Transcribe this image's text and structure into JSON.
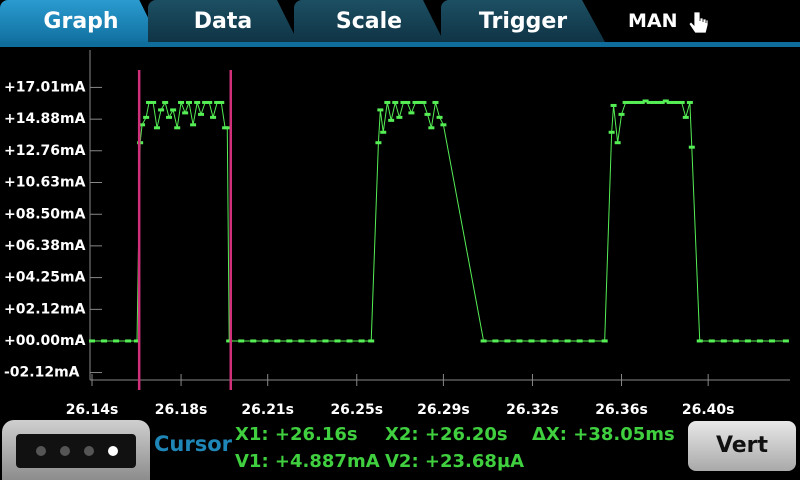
{
  "tabs": [
    "Graph",
    "Data",
    "Scale",
    "Trigger"
  ],
  "mode": "MAN",
  "cursor_panel": {
    "title": "Cursor",
    "x1": "X1: +26.16s",
    "x2": "X2: +26.20s",
    "dx": "ΔX: +38.05ms",
    "v1": "V1: +4.887mA",
    "v2": "V2: +23.68µA",
    "button": "Vert"
  },
  "chart_data": {
    "type": "line",
    "xlim": [
      26.14,
      26.43
    ],
    "ylim": [
      -2.62,
      19.52
    ],
    "xticks": [
      {
        "value": 26.14,
        "label": "26.14s"
      },
      {
        "value": 26.177,
        "label": "26.18s"
      },
      {
        "value": 26.213,
        "label": "26.21s"
      },
      {
        "value": 26.25,
        "label": "26.25s"
      },
      {
        "value": 26.286,
        "label": "26.29s"
      },
      {
        "value": 26.323,
        "label": "26.32s"
      },
      {
        "value": 26.36,
        "label": "26.36s"
      },
      {
        "value": 26.396,
        "label": "26.40s"
      }
    ],
    "yticks": [
      {
        "value": 17.01,
        "label": "+17.01mA"
      },
      {
        "value": 14.88,
        "label": "+14.88mA"
      },
      {
        "value": 12.76,
        "label": "+12.76mA"
      },
      {
        "value": 10.63,
        "label": "+10.63mA"
      },
      {
        "value": 8.5,
        "label": "+08.50mA"
      },
      {
        "value": 6.38,
        "label": "+06.38mA"
      },
      {
        "value": 4.25,
        "label": "+04.25mA"
      },
      {
        "value": 2.12,
        "label": "+02.12mA"
      },
      {
        "value": 0,
        "label": "+00.00mA"
      },
      {
        "value": -2.12,
        "label": "-02.12mA"
      }
    ],
    "cursor_x": [
      26.1596,
      26.19765
    ],
    "cursor_color": "#d0307a",
    "grid": false,
    "series": [
      {
        "color": "#55ee55",
        "x": [
          26.14,
          26.145,
          26.15,
          26.155,
          26.1587,
          26.16,
          26.1608,
          26.1625,
          26.1637,
          26.1654,
          26.167,
          26.1687,
          26.1704,
          26.172,
          26.1737,
          26.1754,
          26.177,
          26.1787,
          26.1803,
          26.182,
          26.1837,
          26.1853,
          26.187,
          26.1887,
          26.1903,
          26.192,
          26.1937,
          26.1953,
          26.1962,
          26.197,
          26.202,
          26.207,
          26.212,
          26.217,
          26.222,
          26.227,
          26.232,
          26.237,
          26.242,
          26.247,
          26.252,
          26.256,
          26.259,
          26.2598,
          26.261,
          26.2627,
          26.2643,
          26.266,
          26.2677,
          26.2694,
          26.271,
          26.2727,
          26.2744,
          26.276,
          26.2777,
          26.2794,
          26.281,
          26.2827,
          26.2844,
          26.286,
          26.3027,
          26.3076,
          26.3126,
          26.3176,
          26.3226,
          26.3276,
          26.3326,
          26.3376,
          26.3426,
          26.3476,
          26.353,
          26.3559,
          26.3567,
          26.3584,
          26.36,
          26.3617,
          26.3634,
          26.365,
          26.3667,
          26.3684,
          26.37,
          26.3717,
          26.3734,
          26.375,
          26.3767,
          26.3784,
          26.38,
          26.3817,
          26.3834,
          26.385,
          26.3867,
          26.3884,
          26.3892,
          26.3925,
          26.3975,
          26.4025,
          26.4075,
          26.4125,
          26.4175,
          26.4225,
          26.4283
        ],
        "values": [
          0,
          0,
          0,
          0,
          0,
          13.3,
          14.5,
          15.0,
          16.0,
          16.0,
          14.3,
          15.5,
          16.0,
          15.0,
          15.5,
          14.3,
          16.0,
          15.3,
          16.0,
          14.5,
          16.0,
          15.2,
          16.0,
          16.0,
          15.0,
          16.0,
          16.0,
          14.3,
          14.3,
          0,
          0,
          0,
          0,
          0,
          0,
          0,
          0,
          0,
          0,
          0,
          0,
          0,
          13.3,
          15.5,
          14.0,
          16.0,
          14.8,
          16.0,
          15.0,
          16.0,
          16.0,
          15.3,
          16.0,
          16.0,
          16.0,
          15.2,
          14.3,
          16.0,
          15.0,
          14.5,
          0,
          0,
          0,
          0,
          0,
          0,
          0,
          0,
          0,
          0,
          0,
          14.0,
          15.8,
          13.3,
          15.2,
          16.0,
          16.0,
          16.0,
          16.0,
          16.0,
          16.1,
          16.0,
          16.0,
          16.0,
          16.0,
          16.1,
          16.0,
          16.0,
          16.0,
          16.0,
          15.0,
          16.0,
          13.0,
          0,
          0,
          0,
          0,
          0,
          0,
          0,
          0
        ]
      }
    ]
  }
}
